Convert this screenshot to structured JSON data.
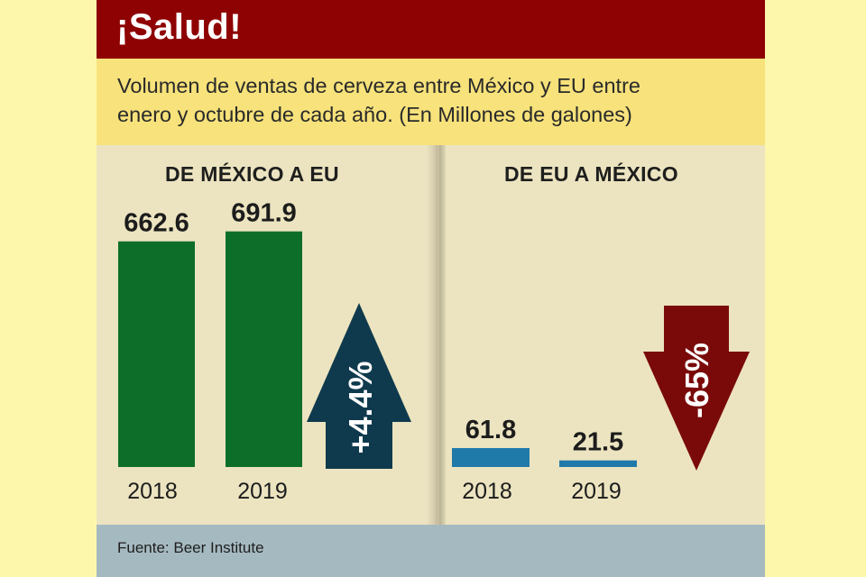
{
  "title": "¡Salud!",
  "subtitle_line1": "Volumen de ventas de cerveza entre México y EU entre",
  "subtitle_line2": "enero y octubre de cada año. (En Millones de galones)",
  "footer": "Fuente: Beer Institute",
  "colors": {
    "title_bg": "#8e0203",
    "subtitle_bg": "#f7e27b",
    "panel_bg": "#ece4c0",
    "footer_bg": "#a5b9c0",
    "bar_mexico": "#0d6e2a",
    "bar_eu": "#1f79a9",
    "arrow_up": "#0f3a4d",
    "arrow_down": "#7a0a0a"
  },
  "chart_data": [
    {
      "type": "bar",
      "title": "DE MÉXICO A EU",
      "categories": [
        "2018",
        "2019"
      ],
      "values": [
        662.6,
        691.9
      ],
      "value_labels": [
        "662.6",
        "691.9"
      ],
      "unit": "Millones de galones",
      "change_label": "+4.4%",
      "change_direction": "up"
    },
    {
      "type": "bar",
      "title": "DE EU A MÉXICO",
      "categories": [
        "2018",
        "2019"
      ],
      "values": [
        61.8,
        21.5
      ],
      "value_labels": [
        "61.8",
        "21.5"
      ],
      "unit": "Millones de galones",
      "change_label": "-65%",
      "change_direction": "down"
    }
  ]
}
